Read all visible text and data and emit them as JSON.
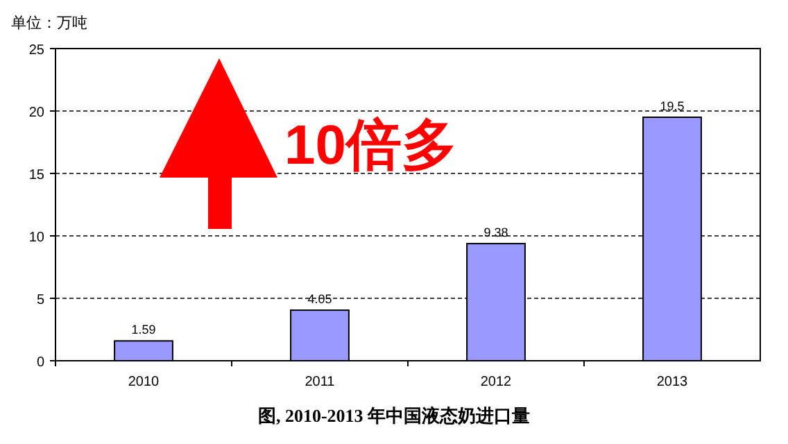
{
  "chart_data": {
    "type": "bar",
    "title": "图, 2010-2013 年中国液态奶进口量",
    "ylabel": "单位：万吨",
    "annotations": [
      "10倍多"
    ],
    "categories": [
      "2010",
      "2011",
      "2012",
      "2013"
    ],
    "values": [
      1.59,
      4.05,
      9.38,
      19.5
    ],
    "color": "#9999ff",
    "ylim": [
      0,
      25
    ],
    "yticks": [
      0,
      5,
      10,
      15,
      20,
      25
    ],
    "grid": "y",
    "data_labels": true
  }
}
